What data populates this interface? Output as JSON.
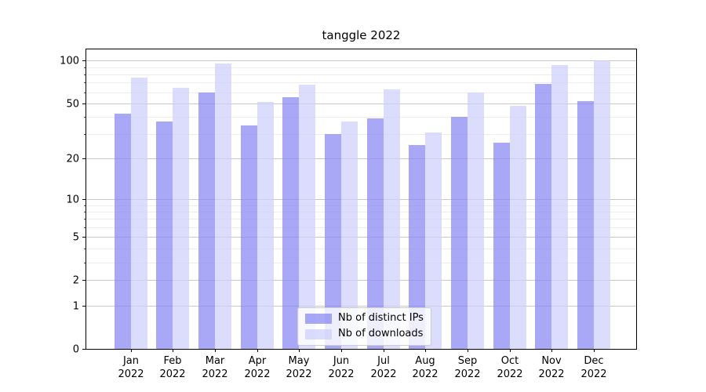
{
  "chart_data": {
    "type": "bar",
    "title": "tanggle 2022",
    "categories": [
      "Jan",
      "Feb",
      "Mar",
      "Apr",
      "May",
      "Jun",
      "Jul",
      "Aug",
      "Sep",
      "Oct",
      "Nov",
      "Dec"
    ],
    "category_year": "2022",
    "series": [
      {
        "name": "Nb of distinct IPs",
        "color": "rgba(134,134,243,0.72)",
        "values": [
          42,
          37,
          60,
          35,
          55,
          30,
          39,
          25,
          40,
          26,
          69,
          52
        ]
      },
      {
        "name": "Nb of downloads",
        "color": "rgba(206,206,251,0.72)",
        "values": [
          76,
          64,
          96,
          51,
          68,
          37,
          63,
          31,
          60,
          48,
          93,
          100
        ]
      }
    ],
    "yscale": "log1p",
    "ylim": [
      0,
      120
    ],
    "yticks": [
      100,
      50,
      20,
      10,
      5,
      2,
      1,
      0
    ],
    "yticks_minor": [
      3,
      4,
      6,
      7,
      8,
      9,
      30,
      40,
      60,
      70,
      80,
      90
    ],
    "grid": "major+minor",
    "legend_position": "lower center"
  },
  "colors": {
    "grid_major": "#c9c9c9",
    "grid_minor": "#ededed",
    "frame": "#000000",
    "legend_border": "#cccccc",
    "legend_bg": "rgba(255,255,255,0.8)"
  }
}
